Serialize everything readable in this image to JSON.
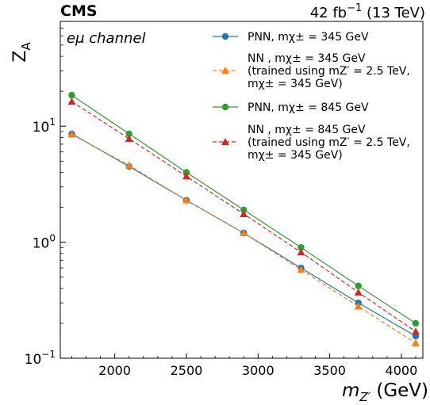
{
  "header": {
    "experiment": "CMS",
    "luminosity": "42 fb",
    "lumi_exponent": "−1",
    "energy": " (13 TeV)"
  },
  "chart_data": {
    "type": "line",
    "channel_label": "eμ channel",
    "ylabel": "Z",
    "ylabel_sub": "A",
    "xlabel_prefix": "m",
    "xlabel_sub": "Z′",
    "xlabel_suffix": " (GeV)",
    "xlim": [
      1620,
      4150
    ],
    "ylim": [
      0.1,
      80
    ],
    "yscale": "log",
    "x_ticks": [
      2000,
      2500,
      3000,
      3500,
      4000
    ],
    "x_tick_labels": [
      "2000",
      "2500",
      "3000",
      "3500",
      "4000"
    ],
    "y_ticks": [
      0.1,
      1,
      10
    ],
    "y_tick_labels": [
      {
        "base": "10",
        "exp": "−1"
      },
      {
        "base": "10",
        "exp": "0"
      },
      {
        "base": "10",
        "exp": "1"
      }
    ],
    "legend_position": "top-right",
    "x": [
      1700,
      2100,
      2500,
      2900,
      3300,
      3700,
      4100
    ],
    "series": [
      {
        "color": "#1f77b4",
        "dashed": false,
        "marker": "circle",
        "legend_lines": [
          "PNN, mχ± = 345 GeV"
        ],
        "values": [
          8.6,
          4.5,
          2.3,
          1.2,
          0.6,
          0.3,
          0.155
        ]
      },
      {
        "color": "#ff7f0e",
        "dashed": true,
        "marker": "triangle",
        "legend_lines": [
          "NN , mχ± = 345 GeV",
          "(trained using mZ′ = 2.5 TeV,",
          "mχ± = 345 GeV)"
        ],
        "values": [
          8.5,
          4.6,
          2.3,
          1.2,
          0.58,
          0.28,
          0.135
        ]
      },
      {
        "color": "#2ca02c",
        "dashed": false,
        "marker": "circle",
        "legend_lines": [
          "PNN, mχ± = 845 GeV"
        ],
        "values": [
          18.5,
          8.6,
          4.0,
          1.9,
          0.9,
          0.42,
          0.2
        ]
      },
      {
        "color": "#d62728",
        "dashed": true,
        "marker": "triangle",
        "legend_lines": [
          "NN , mχ± = 845 GeV",
          "(trained using mZ′ = 2.5 TeV,",
          "mχ± = 345 GeV)"
        ],
        "values": [
          16.3,
          7.8,
          3.7,
          1.75,
          0.82,
          0.37,
          0.17
        ]
      }
    ]
  }
}
